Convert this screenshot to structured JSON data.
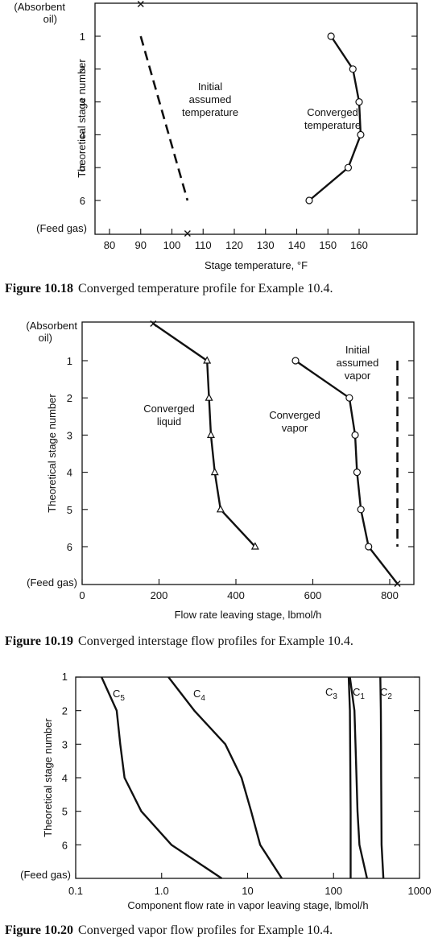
{
  "chart_data": [
    {
      "type": "line",
      "caption_number": "Figure 10.18",
      "caption_text": "Converged temperature profile for Example 10.4.",
      "xlabel": "Stage temperature, °F",
      "ylabel": "Theoretical stage number",
      "x_ticks": [
        "80",
        "90",
        "100",
        "110",
        "120",
        "130",
        "140",
        "150",
        "160"
      ],
      "y_ticks": [
        "1",
        "2",
        "3",
        "4",
        "5",
        "6"
      ],
      "top_label": [
        "(Absorbent",
        "oil)"
      ],
      "bottom_label": "(Feed gas)",
      "xlim": [
        78,
        170
      ],
      "ylim": [
        7,
        0
      ],
      "series": [
        {
          "name": "Initial assumed temperature",
          "label_lines": [
            "Initial",
            "assumed",
            "temperature"
          ],
          "style": "dashed",
          "points": [
            [
              90,
              1
            ],
            [
              105,
              6
            ]
          ]
        },
        {
          "name": "Converged temperature",
          "label_lines": [
            "Converged",
            "temperature"
          ],
          "style": "solid",
          "marker": "circle",
          "points": [
            [
              151,
              1
            ],
            [
              158,
              2
            ],
            [
              160,
              3
            ],
            [
              160.5,
              4
            ],
            [
              156.5,
              5
            ],
            [
              144,
              6
            ]
          ]
        }
      ],
      "end_markers": [
        [
          90,
          0
        ],
        [
          105,
          7
        ]
      ]
    },
    {
      "type": "line",
      "caption_number": "Figure 10.19",
      "caption_text": "Converged interstage flow profiles for Example 10.4.",
      "xlabel": "Flow rate leaving stage, lbmol/h",
      "ylabel": "Theoretical stage number",
      "x_ticks": [
        "0",
        "200",
        "400",
        "600",
        "800"
      ],
      "y_ticks": [
        "1",
        "2",
        "3",
        "4",
        "5",
        "6"
      ],
      "top_label": [
        "(Absorbent",
        "oil)"
      ],
      "bottom_label": "(Feed gas)",
      "xlim": [
        0,
        880
      ],
      "ylim": [
        7,
        0
      ],
      "series": [
        {
          "name": "Converged liquid",
          "label_lines": [
            "Converged",
            "liquid"
          ],
          "style": "solid",
          "marker": "triangle",
          "points": [
            [
              185,
              0
            ],
            [
              325,
              1
            ],
            [
              330,
              2
            ],
            [
              335,
              3
            ],
            [
              345,
              4
            ],
            [
              360,
              5
            ],
            [
              450,
              6
            ]
          ]
        },
        {
          "name": "Converged vapor",
          "label_lines": [
            "Converged",
            "vapor"
          ],
          "style": "solid",
          "marker": "circle",
          "points": [
            [
              555,
              1
            ],
            [
              695,
              2
            ],
            [
              710,
              3
            ],
            [
              715,
              4
            ],
            [
              725,
              5
            ],
            [
              745,
              6
            ],
            [
              820,
              7
            ]
          ]
        },
        {
          "name": "Initial assumed vapor",
          "label_lines": [
            "Initial",
            "assumed",
            "vapor"
          ],
          "style": "dashed",
          "points": [
            [
              820,
              1
            ],
            [
              820,
              6
            ]
          ]
        }
      ]
    },
    {
      "type": "line",
      "caption_number": "Figure 10.20",
      "caption_text": "Converged vapor flow profiles for Example 10.4.",
      "xlabel": "Component flow rate in vapor leaving stage, lbmol/h",
      "ylabel": "Theoretical stage number",
      "x_scale": "log",
      "x_ticks": [
        "0.1",
        "1.0",
        "10",
        "100",
        "1000"
      ],
      "x_tick_values": [
        0.1,
        1,
        10,
        100,
        1000
      ],
      "y_ticks": [
        "1",
        "2",
        "3",
        "4",
        "5",
        "6"
      ],
      "bottom_label": "(Feed gas)",
      "xlim": [
        0.1,
        1000
      ],
      "ylim": [
        7,
        1
      ],
      "series": [
        {
          "name": "C5",
          "base": "C",
          "sub": "5",
          "points": [
            [
              0.2,
              1
            ],
            [
              0.3,
              2
            ],
            [
              0.33,
              3
            ],
            [
              0.37,
              4
            ],
            [
              0.58,
              5
            ],
            [
              1.3,
              6
            ],
            [
              5,
              7
            ]
          ]
        },
        {
          "name": "C4",
          "base": "C",
          "sub": "4",
          "points": [
            [
              1.2,
              1
            ],
            [
              2.4,
              2
            ],
            [
              5.5,
              3
            ],
            [
              8.5,
              4
            ],
            [
              11,
              5
            ],
            [
              14,
              6
            ],
            [
              25,
              7
            ]
          ]
        },
        {
          "name": "C3",
          "base": "C",
          "sub": "3",
          "points": [
            [
              150,
              1
            ],
            [
              155,
              2
            ],
            [
              156,
              3
            ],
            [
              157,
              4
            ],
            [
              158,
              5
            ],
            [
              158,
              6
            ],
            [
              158,
              7
            ]
          ]
        },
        {
          "name": "C1",
          "base": "C",
          "sub": "1",
          "points": [
            [
              155,
              1
            ],
            [
              175,
              2
            ],
            [
              180,
              3
            ],
            [
              185,
              4
            ],
            [
              190,
              5
            ],
            [
              200,
              6
            ],
            [
              245,
              7
            ]
          ]
        },
        {
          "name": "C2",
          "base": "C",
          "sub": "2",
          "points": [
            [
              350,
              1
            ],
            [
              355,
              2
            ],
            [
              357,
              3
            ],
            [
              358,
              4
            ],
            [
              360,
              5
            ],
            [
              362,
              6
            ],
            [
              380,
              7
            ]
          ]
        }
      ]
    }
  ]
}
